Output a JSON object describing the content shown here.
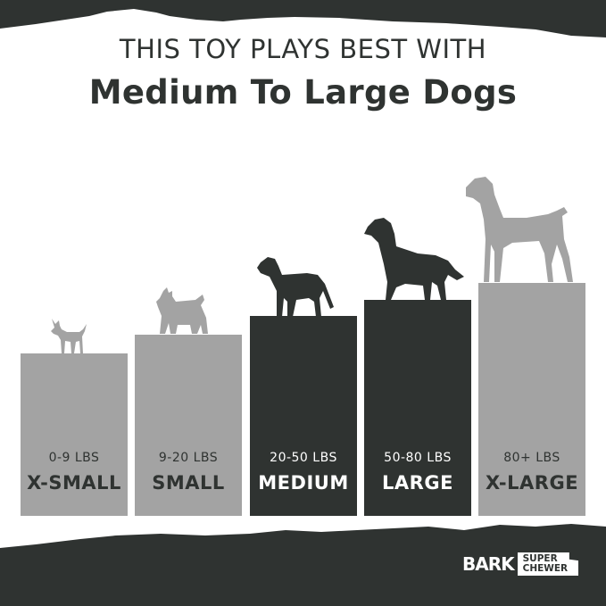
{
  "header": {
    "line1": "THIS TOY PLAYS BEST WITH",
    "line2": "Medium To Large Dogs"
  },
  "sizes": [
    {
      "weight": "0-9 LBS",
      "label": "X-SMALL",
      "highlighted": false
    },
    {
      "weight": "9-20 LBS",
      "label": "SMALL",
      "highlighted": false
    },
    {
      "weight": "20-50 LBS",
      "label": "MEDIUM",
      "highlighted": true
    },
    {
      "weight": "50-80 LBS",
      "label": "LARGE",
      "highlighted": true
    },
    {
      "weight": "80+ LBS",
      "label": "X-LARGE",
      "highlighted": false
    }
  ],
  "brand": {
    "logo_text": "BARK",
    "sub_line1": "SUPER",
    "sub_line2": "CHEWER"
  },
  "colors": {
    "dark": "#2f3331",
    "gray": "#a3a3a3",
    "background": "#ffffff"
  }
}
